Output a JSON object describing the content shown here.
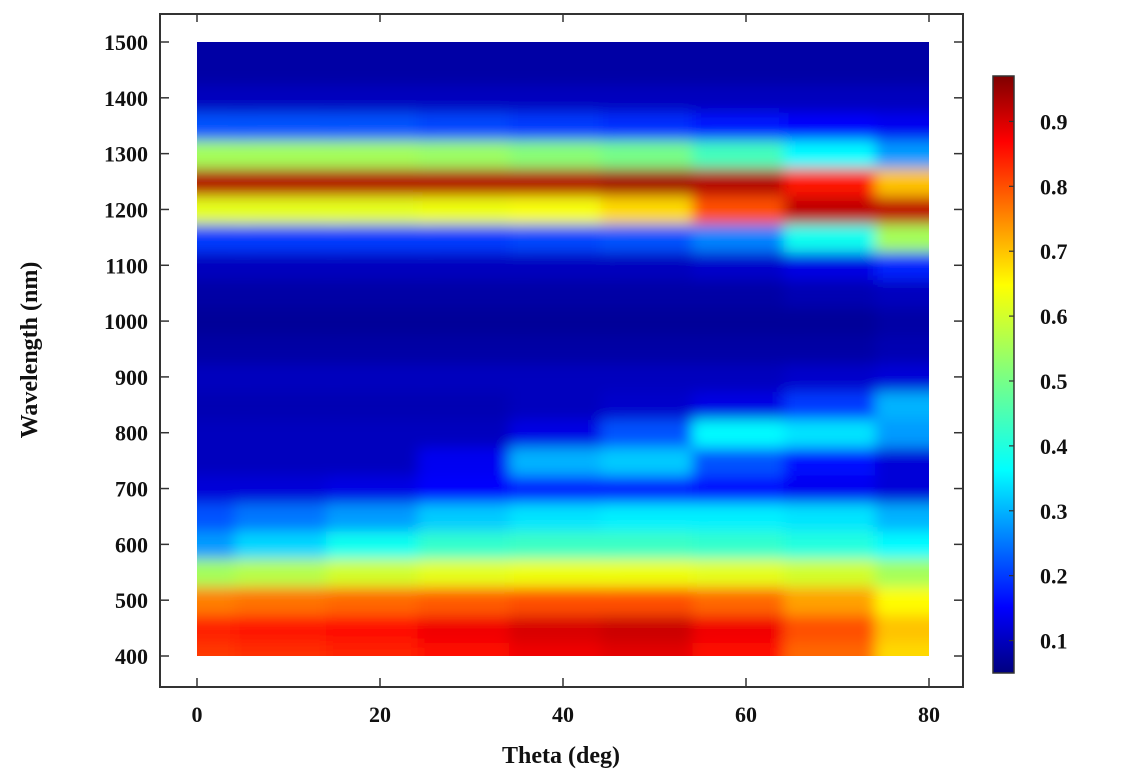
{
  "chart_data": {
    "type": "heatmap",
    "title": "",
    "xlabel": "Theta (deg)",
    "ylabel": "Wavelength (nm)",
    "xlim": [
      0,
      80
    ],
    "ylim": [
      400,
      1500
    ],
    "x_ticks": [
      "0",
      "20",
      "40",
      "60",
      "80"
    ],
    "y_ticks": [
      "400",
      "500",
      "600",
      "700",
      "800",
      "900",
      "1000",
      "1100",
      "1200",
      "1300",
      "1400",
      "1500"
    ],
    "colorbar": {
      "colormap": "jet",
      "range": [
        0.05,
        0.97
      ],
      "ticks": [
        "0.1",
        "0.2",
        "0.3",
        "0.4",
        "0.5",
        "0.6",
        "0.7",
        "0.8",
        "0.9"
      ]
    },
    "theta": [
      0,
      10,
      20,
      30,
      40,
      50,
      60,
      70,
      80
    ],
    "wavelength": [
      400,
      450,
      500,
      550,
      600,
      650,
      700,
      750,
      800,
      850,
      900,
      950,
      1000,
      1050,
      1100,
      1150,
      1200,
      1250,
      1300,
      1350,
      1400,
      1450,
      1500
    ],
    "values": [
      [
        0.82,
        0.83,
        0.84,
        0.86,
        0.88,
        0.89,
        0.86,
        0.78,
        0.68
      ],
      [
        0.84,
        0.85,
        0.86,
        0.88,
        0.9,
        0.91,
        0.88,
        0.8,
        0.7
      ],
      [
        0.76,
        0.77,
        0.78,
        0.79,
        0.8,
        0.8,
        0.78,
        0.73,
        0.65
      ],
      [
        0.55,
        0.57,
        0.6,
        0.62,
        0.63,
        0.63,
        0.62,
        0.6,
        0.55
      ],
      [
        0.28,
        0.33,
        0.38,
        0.42,
        0.43,
        0.43,
        0.42,
        0.4,
        0.36
      ],
      [
        0.22,
        0.25,
        0.28,
        0.32,
        0.34,
        0.35,
        0.35,
        0.34,
        0.3
      ],
      [
        0.12,
        0.12,
        0.13,
        0.15,
        0.18,
        0.18,
        0.16,
        0.14,
        0.12
      ],
      [
        0.1,
        0.1,
        0.1,
        0.14,
        0.3,
        0.32,
        0.22,
        0.16,
        0.12
      ],
      [
        0.1,
        0.1,
        0.1,
        0.1,
        0.13,
        0.22,
        0.36,
        0.34,
        0.28
      ],
      [
        0.09,
        0.09,
        0.09,
        0.09,
        0.1,
        0.11,
        0.13,
        0.2,
        0.3
      ],
      [
        0.1,
        0.1,
        0.1,
        0.1,
        0.1,
        0.1,
        0.1,
        0.11,
        0.12
      ],
      [
        0.08,
        0.08,
        0.08,
        0.08,
        0.08,
        0.08,
        0.08,
        0.08,
        0.09
      ],
      [
        0.07,
        0.07,
        0.07,
        0.07,
        0.07,
        0.07,
        0.07,
        0.07,
        0.08
      ],
      [
        0.08,
        0.08,
        0.08,
        0.08,
        0.08,
        0.08,
        0.08,
        0.09,
        0.1
      ],
      [
        0.1,
        0.1,
        0.1,
        0.1,
        0.1,
        0.1,
        0.11,
        0.13,
        0.18
      ],
      [
        0.2,
        0.2,
        0.2,
        0.2,
        0.21,
        0.22,
        0.26,
        0.38,
        0.55
      ],
      [
        0.62,
        0.62,
        0.62,
        0.63,
        0.64,
        0.68,
        0.8,
        0.92,
        0.92
      ],
      [
        0.93,
        0.93,
        0.93,
        0.93,
        0.93,
        0.94,
        0.93,
        0.85,
        0.7
      ],
      [
        0.55,
        0.55,
        0.55,
        0.54,
        0.52,
        0.5,
        0.44,
        0.36,
        0.28
      ],
      [
        0.22,
        0.22,
        0.22,
        0.21,
        0.2,
        0.19,
        0.17,
        0.15,
        0.14
      ],
      [
        0.1,
        0.1,
        0.1,
        0.1,
        0.1,
        0.1,
        0.1,
        0.1,
        0.1
      ],
      [
        0.08,
        0.08,
        0.08,
        0.08,
        0.08,
        0.08,
        0.08,
        0.08,
        0.08
      ],
      [
        0.08,
        0.08,
        0.08,
        0.08,
        0.08,
        0.08,
        0.08,
        0.08,
        0.08
      ]
    ]
  }
}
